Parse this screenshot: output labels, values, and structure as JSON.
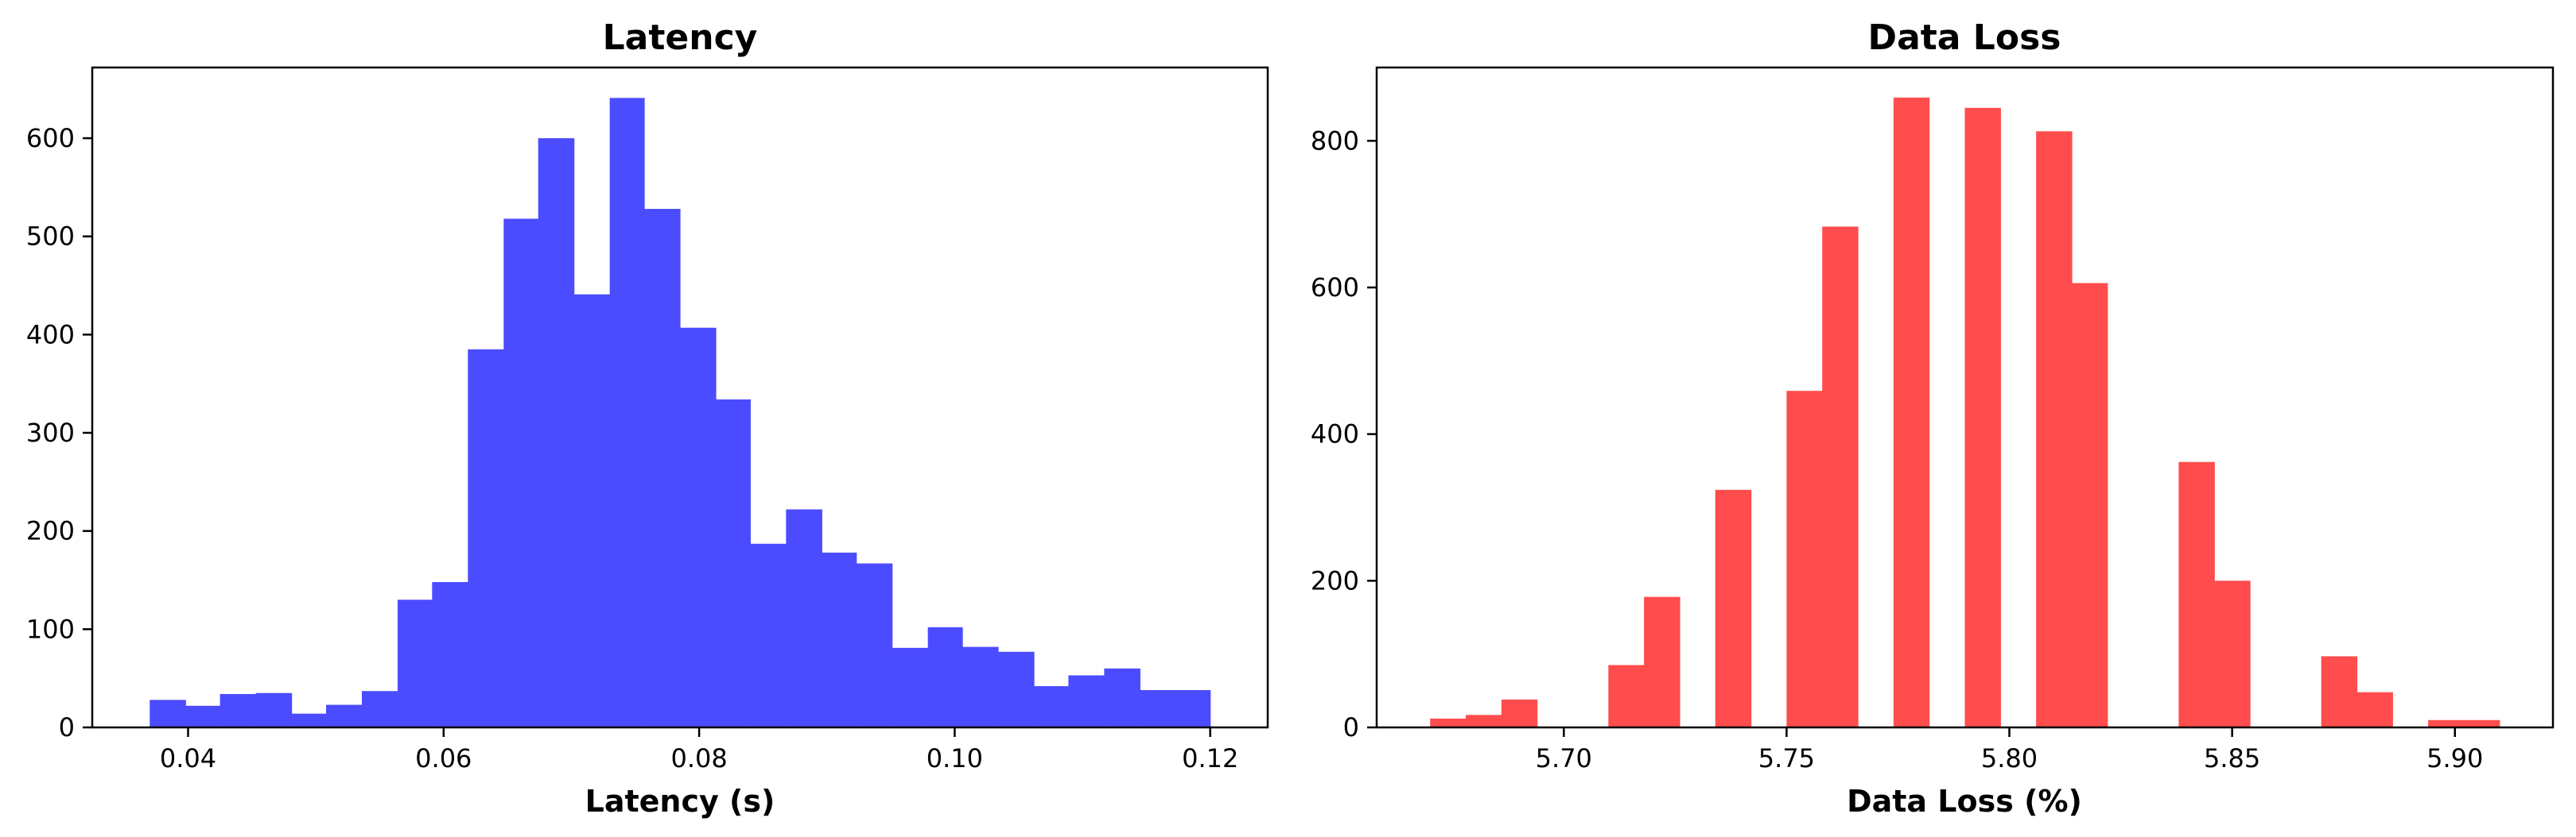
{
  "chart_data": [
    {
      "type": "bar",
      "subtype": "histogram",
      "title": "Latency",
      "xlabel": "Latency (s)",
      "ylabel": "",
      "color": "#4b4bff",
      "xlim": [
        0.0325,
        0.1245
      ],
      "ylim": [
        0,
        672
      ],
      "xticks": [
        0.04,
        0.06,
        0.08,
        0.1,
        0.12
      ],
      "xtick_labels": [
        "0.04",
        "0.06",
        "0.08",
        "0.10",
        "0.12"
      ],
      "yticks": [
        0,
        100,
        200,
        300,
        400,
        500,
        600
      ],
      "ytick_labels": [
        "0",
        "100",
        "200",
        "300",
        "400",
        "500",
        "600"
      ],
      "bin_edges": [
        0.037,
        0.0398,
        0.0425,
        0.0453,
        0.0481,
        0.0508,
        0.0536,
        0.0564,
        0.0591,
        0.0619,
        0.0647,
        0.0674,
        0.0702,
        0.073,
        0.0757,
        0.0785,
        0.0813,
        0.084,
        0.0868,
        0.0896,
        0.0923,
        0.0951,
        0.0979,
        0.1006,
        0.1034,
        0.1062,
        0.1089,
        0.1117,
        0.1145,
        0.1172,
        0.12
      ],
      "values": [
        28,
        22,
        34,
        35,
        14,
        23,
        37,
        130,
        148,
        385,
        518,
        600,
        441,
        641,
        528,
        407,
        334,
        187,
        222,
        178,
        167,
        81,
        102,
        82,
        77,
        42,
        53,
        60,
        38,
        38
      ]
    },
    {
      "type": "bar",
      "subtype": "histogram",
      "title": "Data Loss",
      "xlabel": "Data Loss (%)",
      "ylabel": "",
      "color": "#ff4c4c",
      "xlim": [
        5.658,
        5.922
      ],
      "ylim": [
        0,
        900
      ],
      "xticks": [
        5.7,
        5.75,
        5.8,
        5.85,
        5.9
      ],
      "xtick_labels": [
        "5.70",
        "5.75",
        "5.80",
        "5.85",
        "5.90"
      ],
      "yticks": [
        0,
        200,
        400,
        600,
        800
      ],
      "ytick_labels": [
        "0",
        "200",
        "400",
        "600",
        "800"
      ],
      "bin_edges": [
        5.67,
        5.678,
        5.686,
        5.694,
        5.702,
        5.71,
        5.718,
        5.726,
        5.734,
        5.742,
        5.75,
        5.758,
        5.766,
        5.774,
        5.782,
        5.79,
        5.798,
        5.806,
        5.814,
        5.822,
        5.83,
        5.838,
        5.846,
        5.854,
        5.862,
        5.87,
        5.878,
        5.886,
        5.894,
        5.902,
        5.91
      ],
      "values": [
        12,
        17,
        38,
        0,
        0,
        85,
        178,
        0,
        324,
        0,
        459,
        683,
        0,
        859,
        0,
        845,
        0,
        813,
        606,
        0,
        0,
        362,
        200,
        0,
        0,
        97,
        48,
        0,
        10,
        10
      ]
    }
  ]
}
